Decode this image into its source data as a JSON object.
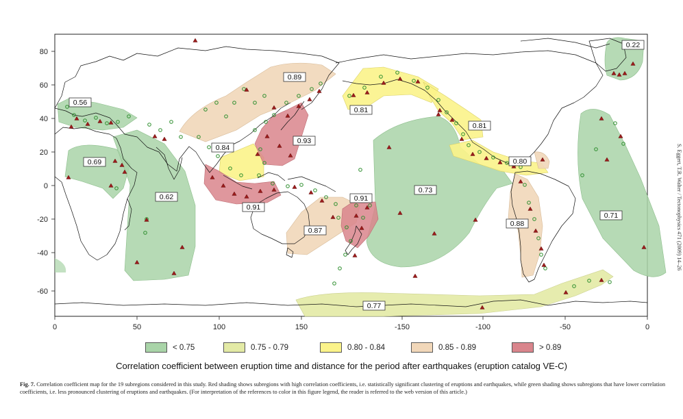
{
  "axes": {
    "y_ticks": [
      "80",
      "60",
      "40",
      "20",
      "0",
      "-20",
      "-40",
      "-60"
    ],
    "x_ticks": [
      "0",
      "50",
      "100",
      "150",
      "-150",
      "-100",
      "-50",
      "0"
    ]
  },
  "regions": [
    {
      "label": "0.56",
      "class": "<0.75"
    },
    {
      "label": "0.89",
      "class": "0.85-0.89"
    },
    {
      "label": "0.81",
      "class": "0.80-0.84"
    },
    {
      "label": "0.22",
      "class": "<0.75"
    },
    {
      "label": "0.93",
      "class": ">0.89"
    },
    {
      "label": "0.84",
      "class": "0.80-0.84"
    },
    {
      "label": "0.81",
      "class": "0.80-0.84"
    },
    {
      "label": "0.69",
      "class": "<0.75"
    },
    {
      "label": "0.80",
      "class": "0.80-0.84"
    },
    {
      "label": "0.73",
      "class": "<0.75"
    },
    {
      "label": "0.62",
      "class": "<0.75"
    },
    {
      "label": "0.91",
      "class": ">0.89"
    },
    {
      "label": "0.91",
      "class": ">0.89"
    },
    {
      "label": "0.87",
      "class": "0.85-0.89"
    },
    {
      "label": "0.88",
      "class": "0.85-0.89"
    },
    {
      "label": "0.71",
      "class": "<0.75"
    },
    {
      "label": "0.77",
      "class": "0.75-0.79"
    }
  ],
  "legend": [
    {
      "label": "< 0.75",
      "color": "#a9d4a8"
    },
    {
      "label": "0.75 - 0.79",
      "color": "#e3eaa5"
    },
    {
      "label": "0.80 - 0.84",
      "color": "#fbf38a"
    },
    {
      "label": "0.85 - 0.89",
      "color": "#f1d7b9"
    },
    {
      "label": "> 0.89",
      "color": "#d9858c"
    }
  ],
  "colors": {
    "volcano_marker": "#9b1b1b",
    "earthquake_marker": "#2f8f2f",
    "coastline": "#000000"
  },
  "chart_caption": "Correlation coefficient between eruption time and distance for the period after earthquakes (eruption catalog VE-C)",
  "figure_caption": {
    "label": "Fig. 7.",
    "text": "Correlation coefficient map for the 19 subregions considered in this study. Red shading shows subregions with high correlation coefficients, i.e. statistically significant clustering of eruptions and earthquakes, while green shading shows subregions that have lower correlation coefficients, i.e. less pronounced clustering of eruptions and earthquakes. (For interpretation of the references to color in this figure legend, the reader is referred to the web version of this article.)"
  },
  "side_reference": "S. Eggert, T.R. Walter / Tectonophysics 471 (2009) 14–26"
}
